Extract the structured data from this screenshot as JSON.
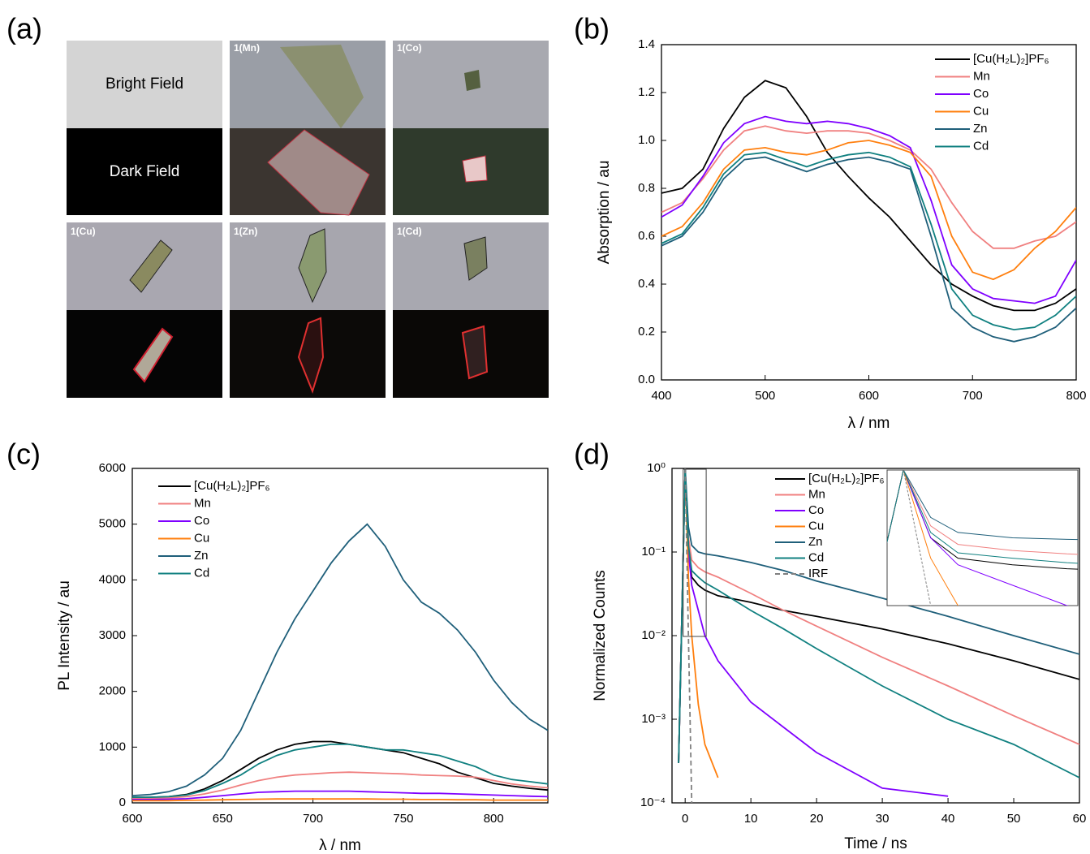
{
  "image_panel": {
    "panel": "(a)",
    "row_labels": [
      "Bright Field",
      "Dark Field"
    ],
    "sample_labels": [
      "1(Mn)",
      "1(Co)",
      "1(Cu)",
      "1(Zn)",
      "1(Cd)"
    ]
  },
  "chart_data": [
    {
      "type": "line",
      "panel": "(b)",
      "y_label": "Absorption / au",
      "x_label": "λ / nm",
      "x": [
        400,
        420,
        440,
        460,
        480,
        500,
        520,
        540,
        560,
        580,
        600,
        620,
        640,
        660,
        680,
        700,
        720,
        740,
        760,
        780,
        800
      ],
      "xlim": [
        400,
        800
      ],
      "xticks": [
        400,
        500,
        600,
        700,
        800
      ],
      "ylim": [
        0,
        1.4
      ],
      "yticks": [
        {
          "value": 0,
          "label": "0.0"
        },
        0.2,
        0.4,
        0.6,
        0.8,
        {
          "value": 1,
          "label": "1.0"
        },
        1.2,
        1.4
      ],
      "series": [
        {
          "name": "[Cu(H₂L)₂]PF₆",
          "color": "#000000",
          "values": [
            0.78,
            0.8,
            0.88,
            1.05,
            1.18,
            1.25,
            1.22,
            1.1,
            0.95,
            0.85,
            0.76,
            0.68,
            0.58,
            0.48,
            0.4,
            0.35,
            0.31,
            0.29,
            0.29,
            0.32,
            0.38
          ]
        },
        {
          "name": "Mn",
          "color": "#f08080",
          "values": [
            0.7,
            0.74,
            0.84,
            0.96,
            1.04,
            1.06,
            1.04,
            1.03,
            1.04,
            1.04,
            1.03,
            1.0,
            0.96,
            0.88,
            0.74,
            0.62,
            0.55,
            0.55,
            0.58,
            0.6,
            0.66
          ]
        },
        {
          "name": "Co",
          "color": "#7f00ff",
          "values": [
            0.68,
            0.73,
            0.85,
            0.99,
            1.07,
            1.1,
            1.08,
            1.07,
            1.08,
            1.07,
            1.05,
            1.02,
            0.97,
            0.75,
            0.48,
            0.38,
            0.34,
            0.33,
            0.32,
            0.35,
            0.5
          ]
        },
        {
          "name": "Cu",
          "color": "#ff7f0e",
          "values": [
            0.6,
            0.64,
            0.74,
            0.88,
            0.96,
            0.97,
            0.95,
            0.94,
            0.96,
            0.99,
            1.0,
            0.98,
            0.95,
            0.85,
            0.6,
            0.45,
            0.42,
            0.46,
            0.55,
            0.62,
            0.72
          ]
        },
        {
          "name": "Zn",
          "color": "#1f5f7a",
          "values": [
            0.56,
            0.6,
            0.7,
            0.84,
            0.92,
            0.93,
            0.9,
            0.87,
            0.9,
            0.92,
            0.93,
            0.91,
            0.88,
            0.6,
            0.3,
            0.22,
            0.18,
            0.16,
            0.18,
            0.22,
            0.3
          ]
        },
        {
          "name": "Cd",
          "color": "#108080",
          "values": [
            0.57,
            0.61,
            0.72,
            0.86,
            0.94,
            0.95,
            0.92,
            0.89,
            0.92,
            0.94,
            0.95,
            0.93,
            0.89,
            0.65,
            0.38,
            0.27,
            0.23,
            0.21,
            0.22,
            0.27,
            0.35
          ]
        }
      ]
    },
    {
      "type": "line",
      "panel": "(c)",
      "y_label": "PL Intensity / au",
      "x_label": "λ / nm",
      "x": [
        600,
        610,
        620,
        630,
        640,
        650,
        660,
        670,
        680,
        690,
        700,
        710,
        720,
        730,
        740,
        750,
        760,
        770,
        780,
        790,
        800,
        810,
        820,
        830
      ],
      "xlim": [
        600,
        830
      ],
      "xticks": [
        600,
        650,
        700,
        750,
        800
      ],
      "ylim": [
        0,
        6000
      ],
      "yticks": [
        0,
        1000,
        2000,
        3000,
        4000,
        5000,
        6000
      ],
      "series": [
        {
          "name": "[Cu(H₂L)₂]PF₆",
          "color": "#000000",
          "values": [
            100,
            100,
            110,
            150,
            250,
            400,
            600,
            800,
            950,
            1050,
            1100,
            1100,
            1050,
            1000,
            950,
            900,
            800,
            700,
            550,
            450,
            350,
            300,
            260,
            230
          ]
        },
        {
          "name": "Mn",
          "color": "#f08080",
          "values": [
            80,
            80,
            90,
            110,
            160,
            230,
            320,
            400,
            460,
            500,
            520,
            540,
            550,
            540,
            530,
            520,
            500,
            490,
            480,
            460,
            400,
            340,
            300,
            270
          ]
        },
        {
          "name": "Co",
          "color": "#7f00ff",
          "values": [
            60,
            60,
            65,
            75,
            100,
            130,
            160,
            190,
            200,
            210,
            210,
            210,
            210,
            200,
            190,
            180,
            170,
            170,
            160,
            150,
            140,
            130,
            120,
            110
          ]
        },
        {
          "name": "Cu",
          "color": "#ff7f0e",
          "values": [
            40,
            40,
            40,
            45,
            50,
            55,
            60,
            65,
            70,
            70,
            70,
            70,
            70,
            70,
            65,
            65,
            60,
            60,
            55,
            55,
            50,
            50,
            50,
            50
          ]
        },
        {
          "name": "Zn",
          "color": "#1f5f7a",
          "values": [
            130,
            150,
            200,
            300,
            500,
            800,
            1300,
            2000,
            2700,
            3300,
            3800,
            4300,
            4700,
            5000,
            4600,
            4000,
            3600,
            3400,
            3100,
            2700,
            2200,
            1800,
            1500,
            1300
          ]
        },
        {
          "name": "Cd",
          "color": "#108080",
          "values": [
            100,
            100,
            110,
            140,
            220,
            350,
            500,
            700,
            850,
            950,
            1000,
            1050,
            1050,
            1000,
            950,
            950,
            900,
            850,
            750,
            650,
            500,
            420,
            380,
            340
          ]
        }
      ]
    },
    {
      "type": "line",
      "panel": "(d)",
      "y_label": "Normalized Counts",
      "x_label": "Time / ns",
      "log_y": true,
      "x": [
        -1,
        0,
        0.5,
        1,
        2,
        3,
        5,
        10,
        15,
        20,
        30,
        40,
        50,
        60
      ],
      "xlim": [
        -2,
        60
      ],
      "xticks": [
        0,
        10,
        20,
        30,
        40,
        50,
        60
      ],
      "ylim": [
        0.0001,
        1
      ],
      "yticks": [
        {
          "value": 0.0001,
          "label": "10⁻⁴"
        },
        {
          "value": 0.001,
          "label": "10⁻³"
        },
        {
          "value": 0.01,
          "label": "10⁻²"
        },
        {
          "value": 0.1,
          "label": "10⁻¹"
        },
        {
          "value": 1,
          "label": "10⁰"
        }
      ],
      "inset_xlim": [
        -0.3,
        3.2
      ],
      "inset_ylim": [
        0.01,
        1
      ],
      "series": [
        {
          "name": "[Cu(H₂L)₂]PF₆",
          "color": "#000000",
          "values": [
            0.0003,
            1,
            0.1,
            0.05,
            0.04,
            0.035,
            0.03,
            0.025,
            0.02,
            0.017,
            0.012,
            0.008,
            0.005,
            0.003
          ]
        },
        {
          "name": "Mn",
          "color": "#f08080",
          "values": [
            0.0003,
            1,
            0.15,
            0.08,
            0.065,
            0.058,
            0.05,
            0.032,
            0.02,
            0.013,
            0.0055,
            0.0025,
            0.0011,
            0.0005
          ]
        },
        {
          "name": "Co",
          "color": "#7f00ff",
          "values": [
            0.0003,
            1,
            0.1,
            0.04,
            0.02,
            0.01,
            0.005,
            0.0016,
            0.0008,
            0.0004,
            0.00015,
            0.00012,
            null,
            null
          ]
        },
        {
          "name": "Cu",
          "color": "#ff7f0e",
          "values": [
            0.0003,
            1,
            0.05,
            0.01,
            0.0015,
            0.0005,
            0.0002,
            null,
            null,
            null,
            null,
            null,
            null,
            null
          ]
        },
        {
          "name": "Zn",
          "color": "#1f5f7a",
          "values": [
            0.0003,
            1,
            0.2,
            0.12,
            0.1,
            0.095,
            0.09,
            0.075,
            0.06,
            0.045,
            0.028,
            0.017,
            0.01,
            0.006
          ]
        },
        {
          "name": "Cd",
          "color": "#108080",
          "values": [
            0.0003,
            1,
            0.12,
            0.06,
            0.05,
            0.043,
            0.035,
            0.02,
            0.012,
            0.007,
            0.0025,
            0.001,
            0.0005,
            0.0002
          ]
        },
        {
          "name": "IRF",
          "color": "#808080",
          "style": "dashed",
          "values": [
            null,
            1,
            0.01,
            0.0001,
            null,
            null,
            null,
            null,
            null,
            null,
            null,
            null,
            null,
            null
          ]
        }
      ]
    }
  ]
}
